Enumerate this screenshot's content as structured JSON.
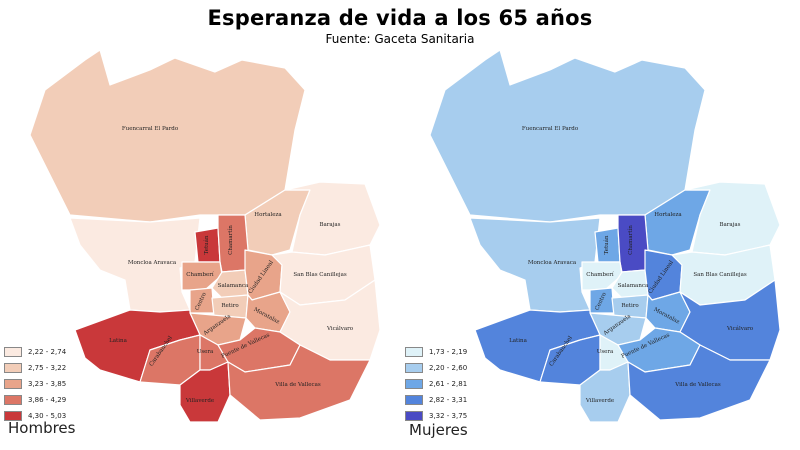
{
  "header": {
    "title": "Esperanza de vida a los 65 años",
    "source": "Fuente: Gaceta Sanitaria"
  },
  "districts": {
    "fuencarral": "Fuencarral El Pardo",
    "hortaleza": "Hortaleza",
    "barajas": "Barajas",
    "moncloa": "Moncloa Aravaca",
    "tetuan": "Tetuán",
    "chamartin": "Chamartín",
    "chamberi": "Chamberí",
    "salamanca": "Salamanca",
    "ciudadlineal": "Ciudad Lineal",
    "sanblas": "San Blas Canillejas",
    "centro": "Centro",
    "retiro": "Retiro",
    "moratalaz": "Moratalaz",
    "arganzuela": "Arganzuela",
    "vicalvaro": "Vicálvaro",
    "latina": "Latina",
    "carabanchel": "Carabanchel",
    "usera": "Usera",
    "puente": "Puente de Vallecas",
    "villaverde": "Villaverde",
    "villa": "Villa de Vallecas"
  },
  "maps": {
    "hombres": {
      "caption": "Hombres",
      "legend": [
        {
          "label": "2,22 - 2,74",
          "color": "#fbeae1"
        },
        {
          "label": "2,75 - 3,22",
          "color": "#f2cdb8"
        },
        {
          "label": "3,23 - 3,85",
          "color": "#e8a48a"
        },
        {
          "label": "3,86 - 4,29",
          "color": "#dc7666"
        },
        {
          "label": "4,30 - 5,03",
          "color": "#c9383a"
        }
      ],
      "classes": {
        "fuencarral": 1,
        "hortaleza": 1,
        "barajas": 0,
        "moncloa": 0,
        "tetuan": 4,
        "chamartin": 3,
        "chamberi": 2,
        "salamanca": 1,
        "ciudadlineal": 2,
        "sanblas": 0,
        "centro": 2,
        "retiro": 1,
        "moratalaz": 2,
        "arganzuela": 2,
        "vicalvaro": 0,
        "latina": 4,
        "carabanchel": 3,
        "usera": 3,
        "puente": 3,
        "villaverde": 4,
        "villa": 3
      }
    },
    "mujeres": {
      "caption": "Mujeres",
      "legend": [
        {
          "label": "1,73 - 2,19",
          "color": "#dff2f8"
        },
        {
          "label": "2,20 - 2,60",
          "color": "#a7cdee"
        },
        {
          "label": "2,61 - 2,81",
          "color": "#6ea7e6"
        },
        {
          "label": "2,82 - 3,31",
          "color": "#5384dc"
        },
        {
          "label": "3,32 - 3,75",
          "color": "#4a4bc4"
        }
      ],
      "classes": {
        "fuencarral": 1,
        "hortaleza": 2,
        "barajas": 0,
        "moncloa": 1,
        "tetuan": 2,
        "chamartin": 4,
        "chamberi": 0,
        "salamanca": 0,
        "ciudadlineal": 3,
        "sanblas": 0,
        "centro": 2,
        "retiro": 1,
        "moratalaz": 2,
        "arganzuela": 1,
        "vicalvaro": 3,
        "latina": 3,
        "carabanchel": 3,
        "usera": 0,
        "puente": 2,
        "villaverde": 1,
        "villa": 3
      }
    }
  }
}
